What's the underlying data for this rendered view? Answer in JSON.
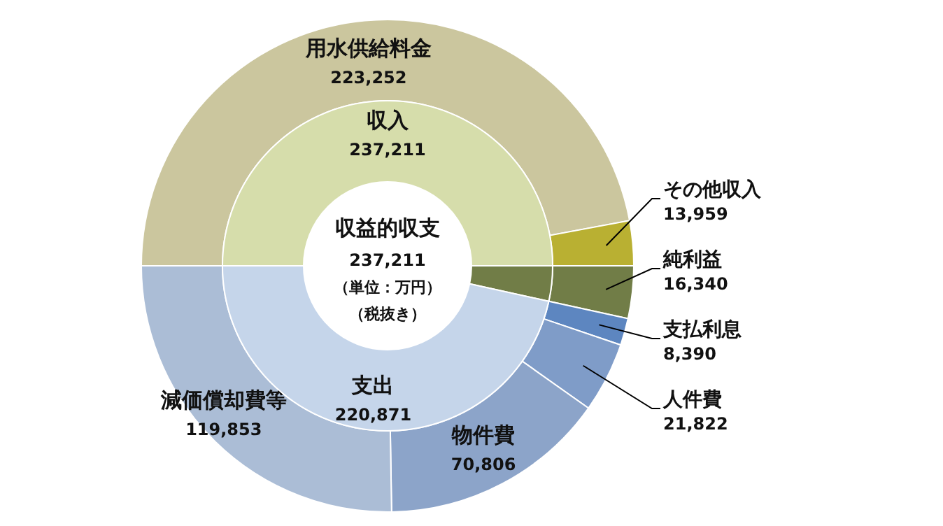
{
  "chart_data": [
    {
      "type": "donut",
      "title": "収益的収支",
      "annotations": [
        "237,211",
        "（単位：万円）",
        "（税抜き）"
      ],
      "categories": [
        "用水供給料金",
        "その他収入",
        "純利益",
        "支払利息",
        "人件費",
        "物件費",
        "減価償却費等"
      ],
      "values": [
        223252,
        13959,
        16340,
        8390,
        21822,
        70806,
        119853
      ],
      "value_labels": [
        "223,252",
        "13,959",
        "16,340",
        "8,390",
        "21,822",
        "70,806",
        "119,853"
      ],
      "colors": [
        "#cbc69e",
        "#b9b032",
        "#717d47",
        "#5d86c0",
        "#7f9cc8",
        "#8ca4c9",
        "#abbdd6"
      ]
    },
    {
      "type": "donut",
      "categories": [
        "収入",
        null,
        "支出"
      ],
      "values": [
        237211,
        16340,
        220871
      ],
      "value_labels": [
        "237,211",
        null,
        "220,871"
      ],
      "colors": [
        "#d6ddab",
        "#717d47",
        "#c5d5ea"
      ]
    }
  ]
}
